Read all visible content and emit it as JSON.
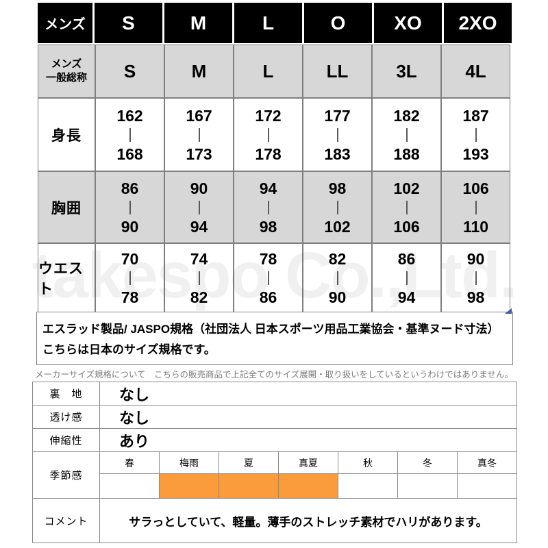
{
  "watermark": {
    "text": "takespo Co.,Ltd."
  },
  "colors": {
    "header_bg": "#000000",
    "header_text": "#ffffff",
    "row_gray_bg": "#d7d7d7",
    "grid_border": "#7f7f7f",
    "season_active": "#fa9b3c",
    "blue_mark": "#3d5da8"
  },
  "size_chart": {
    "corner_label": "メンズ",
    "sizes": [
      "S",
      "M",
      "L",
      "O",
      "XO",
      "2XO"
    ],
    "general_label_line1": "メンズ",
    "general_label_line2": "一般総称",
    "general_sizes": [
      "S",
      "M",
      "L",
      "LL",
      "3L",
      "4L"
    ],
    "rows": [
      {
        "label": "身長",
        "cells": [
          {
            "min": "162",
            "max": "168"
          },
          {
            "min": "167",
            "max": "173"
          },
          {
            "min": "172",
            "max": "178"
          },
          {
            "min": "177",
            "max": "183"
          },
          {
            "min": "182",
            "max": "188"
          },
          {
            "min": "187",
            "max": "193"
          }
        ]
      },
      {
        "label": "胸囲",
        "cells": [
          {
            "min": "86",
            "max": "90"
          },
          {
            "min": "90",
            "max": "94"
          },
          {
            "min": "94",
            "max": "98"
          },
          {
            "min": "98",
            "max": "102"
          },
          {
            "min": "102",
            "max": "106"
          },
          {
            "min": "106",
            "max": "110"
          }
        ]
      },
      {
        "label": "ウエスト",
        "cells": [
          {
            "min": "70",
            "max": "78"
          },
          {
            "min": "74",
            "max": "82"
          },
          {
            "min": "78",
            "max": "86"
          },
          {
            "min": "82",
            "max": "90"
          },
          {
            "min": "86",
            "max": "94"
          },
          {
            "min": "90",
            "max": "98"
          }
        ]
      }
    ]
  },
  "notes": {
    "line1": "エスラッド製品/ JASPO規格（社団法人 日本スポーツ用品工業協会・基準ヌード寸法）",
    "line2": "こちらは日本のサイズ規格です。",
    "disclaimer": "メーカーサイズ規格について　こちらの販売商品で上記全てのサイズ展開・取り扱いをしているというわけではありません。"
  },
  "spec_table": {
    "rows": [
      {
        "label": "裏　地",
        "value": "なし"
      },
      {
        "label": "透け感",
        "value": "なし"
      },
      {
        "label": "伸縮性",
        "value": "あり"
      }
    ],
    "season": {
      "label": "季節感",
      "columns": [
        {
          "label": "春",
          "active": false
        },
        {
          "label": "梅雨",
          "active": true
        },
        {
          "label": "夏",
          "active": true
        },
        {
          "label": "真夏",
          "active": true
        },
        {
          "label": "秋",
          "active": false
        },
        {
          "label": "冬",
          "active": false
        },
        {
          "label": "真冬",
          "active": false
        }
      ],
      "active_color": "#fa9b3c"
    },
    "comment": {
      "label": "コメント",
      "value": "サラっとしていて、軽量。薄手のストレッチ素材でハリがあります。"
    }
  }
}
